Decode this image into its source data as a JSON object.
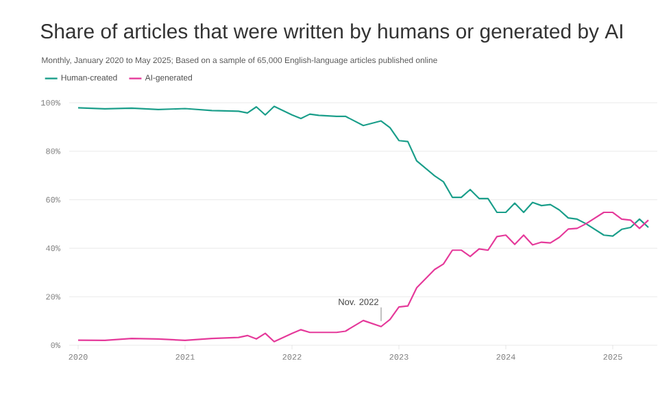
{
  "chart_data": {
    "type": "line",
    "title": "Share of articles that were written by humans or generated by AI",
    "subtitle": "Monthly, January 2020 to May 2025; Based on a sample of 65,000 English-language articles published online",
    "x": [
      "2020-01",
      "2020-04",
      "2020-07",
      "2020-10",
      "2021-01",
      "2021-04",
      "2021-07",
      "2021-08",
      "2021-09",
      "2021-10",
      "2021-11",
      "2022-01",
      "2022-02",
      "2022-03",
      "2022-04",
      "2022-06",
      "2022-07",
      "2022-09",
      "2022-11",
      "2022-12",
      "2023-01",
      "2023-02",
      "2023-03",
      "2023-05",
      "2023-06",
      "2023-07",
      "2023-08",
      "2023-09",
      "2023-10",
      "2023-11",
      "2023-12",
      "2024-01",
      "2024-02",
      "2024-03",
      "2024-04",
      "2024-05",
      "2024-06",
      "2024-07",
      "2024-08",
      "2024-09",
      "2024-10",
      "2024-12",
      "2025-01",
      "2025-02",
      "2025-03",
      "2025-04",
      "2025-05"
    ],
    "series": [
      {
        "name": "Human-created",
        "color": "#1a9e8a",
        "values": [
          97.9,
          97.5,
          97.8,
          97.2,
          97.6,
          96.8,
          96.5,
          95.8,
          98.3,
          95.0,
          98.5,
          95.0,
          93.5,
          95.3,
          94.8,
          94.4,
          94.4,
          90.6,
          92.5,
          89.7,
          84.4,
          84.0,
          76.0,
          69.9,
          67.4,
          61.0,
          61.0,
          64.2,
          60.5,
          60.5,
          54.8,
          54.8,
          58.6,
          54.8,
          58.9,
          57.6,
          58.0,
          55.8,
          52.5,
          52.0,
          50.1,
          45.4,
          45.0,
          47.8,
          48.6,
          52.0,
          48.6
        ]
      },
      {
        "name": "AI-generated",
        "color": "#e5399a",
        "values": [
          2.1,
          2.0,
          2.8,
          2.6,
          2.0,
          2.8,
          3.2,
          4.0,
          2.6,
          4.9,
          1.5,
          4.9,
          6.4,
          5.3,
          5.3,
          5.3,
          5.8,
          10.2,
          7.7,
          10.6,
          15.8,
          16.2,
          23.7,
          31.2,
          33.5,
          39.2,
          39.2,
          36.6,
          39.7,
          39.2,
          44.8,
          45.4,
          41.6,
          45.4,
          41.4,
          42.5,
          42.2,
          44.5,
          47.9,
          48.2,
          50.1,
          54.8,
          54.8,
          52.0,
          51.6,
          48.2,
          51.6
        ]
      }
    ],
    "xlim": [
      "2019-12",
      "2025-06"
    ],
    "xticks": [
      "2020",
      "2021",
      "2022",
      "2023",
      "2024",
      "2025"
    ],
    "ylim": [
      0,
      100
    ],
    "yticks": [
      {
        "value": 0,
        "label": "0%"
      },
      {
        "value": 20,
        "label": "20%"
      },
      {
        "value": 40,
        "label": "40%"
      },
      {
        "value": 60,
        "label": "60%"
      },
      {
        "value": 80,
        "label": "80%"
      },
      {
        "value": 100,
        "label": "100%"
      }
    ],
    "grid": "y",
    "legend": "top left",
    "marker": "none",
    "line_style": "solid",
    "annotations": [
      {
        "text": "Nov. 2022",
        "x": "2022-11",
        "y": 7.7
      }
    ]
  }
}
